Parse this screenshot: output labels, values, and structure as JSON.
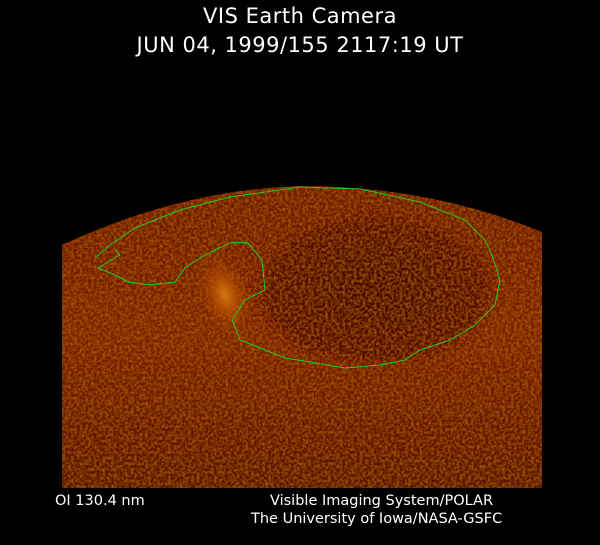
{
  "header": {
    "title": "VIS Earth Camera",
    "timestamp": "JUN 04, 1999/155 2117:19 UT"
  },
  "footer": {
    "band": "OI  130.4 nm",
    "instrument": "Visible Imaging System/POLAR",
    "organization": "The University of Iowa/NASA-GSFC"
  },
  "colors": {
    "background": "#000000",
    "aurora_dark": "#3a0500",
    "aurora_bright": "#e08a20",
    "coastline": "#22cc22"
  }
}
